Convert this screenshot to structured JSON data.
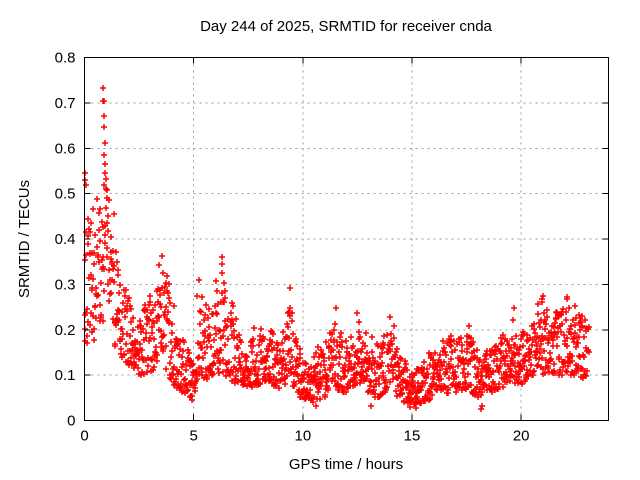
{
  "chart_data": {
    "type": "scatter",
    "title": "Day 244 of 2025, SRMTID for receiver cnda",
    "xlabel": "GPS time / hours",
    "ylabel": "SRMTID / TECUs",
    "xlim": [
      0,
      24
    ],
    "ylim": [
      0,
      0.8
    ],
    "xticks": [
      0,
      5,
      10,
      15,
      20
    ],
    "xtick_labels": [
      "0",
      "5",
      "10",
      "15",
      "20"
    ],
    "yticks": [
      0,
      0.1,
      0.2,
      0.3,
      0.4,
      0.5,
      0.6,
      0.7,
      0.8
    ],
    "ytick_labels": [
      "0",
      "0.1",
      "0.2",
      "0.3",
      "0.4",
      "0.5",
      "0.6",
      "0.7",
      "0.8"
    ],
    "grid": true,
    "legend": "none",
    "marker": {
      "glyph": "plus",
      "color": "#ff0000",
      "size": 7
    },
    "colors": {
      "marker": "#ff0000",
      "grid": "#9c9c9c",
      "axis": "#000000",
      "background": "#ffffff"
    },
    "series_name": "SRMTID",
    "x_start": 0.0,
    "x_end": 23.1,
    "n_points": 1650,
    "seed": 2440244,
    "spike_prob": 0.035,
    "envelope": [
      [
        0.0,
        0.17,
        0.5
      ],
      [
        0.3,
        0.17,
        0.45
      ],
      [
        0.6,
        0.18,
        0.5
      ],
      [
        0.8,
        0.2,
        0.55
      ],
      [
        1.0,
        0.28,
        0.52
      ],
      [
        1.2,
        0.2,
        0.46
      ],
      [
        1.5,
        0.15,
        0.36
      ],
      [
        1.8,
        0.13,
        0.31
      ],
      [
        2.1,
        0.12,
        0.26
      ],
      [
        2.5,
        0.1,
        0.21
      ],
      [
        2.9,
        0.1,
        0.26
      ],
      [
        3.3,
        0.12,
        0.31
      ],
      [
        3.6,
        0.12,
        0.34
      ],
      [
        3.9,
        0.09,
        0.28
      ],
      [
        4.2,
        0.07,
        0.19
      ],
      [
        4.6,
        0.06,
        0.16
      ],
      [
        5.0,
        0.05,
        0.14
      ],
      [
        5.2,
        0.1,
        0.3
      ],
      [
        5.6,
        0.09,
        0.25
      ],
      [
        6.0,
        0.1,
        0.28
      ],
      [
        6.3,
        0.11,
        0.33
      ],
      [
        6.6,
        0.09,
        0.27
      ],
      [
        7.0,
        0.08,
        0.19
      ],
      [
        7.5,
        0.07,
        0.17
      ],
      [
        8.0,
        0.08,
        0.2
      ],
      [
        8.5,
        0.08,
        0.18
      ],
      [
        9.0,
        0.07,
        0.17
      ],
      [
        9.4,
        0.09,
        0.28
      ],
      [
        9.7,
        0.06,
        0.17
      ],
      [
        10.0,
        0.04,
        0.13
      ],
      [
        10.5,
        0.04,
        0.14
      ],
      [
        11.0,
        0.05,
        0.16
      ],
      [
        11.5,
        0.07,
        0.23
      ],
      [
        12.0,
        0.06,
        0.17
      ],
      [
        12.5,
        0.08,
        0.22
      ],
      [
        13.0,
        0.05,
        0.16
      ],
      [
        13.5,
        0.05,
        0.17
      ],
      [
        14.0,
        0.07,
        0.21
      ],
      [
        14.5,
        0.04,
        0.14
      ],
      [
        15.0,
        0.035,
        0.11
      ],
      [
        15.5,
        0.04,
        0.13
      ],
      [
        16.0,
        0.05,
        0.15
      ],
      [
        16.5,
        0.06,
        0.18
      ],
      [
        17.0,
        0.06,
        0.18
      ],
      [
        17.5,
        0.07,
        0.2
      ],
      [
        18.0,
        0.05,
        0.17
      ],
      [
        18.5,
        0.06,
        0.15
      ],
      [
        19.0,
        0.07,
        0.17
      ],
      [
        19.5,
        0.08,
        0.18
      ],
      [
        20.0,
        0.08,
        0.19
      ],
      [
        20.5,
        0.1,
        0.21
      ],
      [
        21.0,
        0.1,
        0.26
      ],
      [
        21.5,
        0.1,
        0.22
      ],
      [
        22.0,
        0.1,
        0.25
      ],
      [
        22.5,
        0.1,
        0.24
      ],
      [
        23.1,
        0.09,
        0.22
      ]
    ],
    "outliers": [
      [
        0.02,
        0.545
      ],
      [
        0.03,
        0.53
      ],
      [
        0.05,
        0.52
      ],
      [
        0.85,
        0.732
      ],
      [
        0.86,
        0.705
      ],
      [
        0.88,
        0.705
      ],
      [
        0.88,
        0.672
      ],
      [
        0.9,
        0.646
      ],
      [
        0.92,
        0.612
      ],
      [
        0.88,
        0.585
      ],
      [
        0.93,
        0.566
      ],
      [
        0.95,
        0.546
      ],
      [
        1.02,
        0.508
      ],
      [
        1.05,
        0.49
      ],
      [
        3.55,
        0.362
      ],
      [
        5.25,
        0.31
      ],
      [
        6.3,
        0.344
      ],
      [
        9.42,
        0.292
      ],
      [
        11.5,
        0.248
      ],
      [
        12.5,
        0.238
      ],
      [
        14.0,
        0.228
      ],
      [
        17.6,
        0.208
      ],
      [
        19.62,
        0.222
      ],
      [
        19.68,
        0.247
      ],
      [
        20.95,
        0.262
      ],
      [
        21.0,
        0.275
      ],
      [
        22.1,
        0.272
      ],
      [
        22.45,
        0.252
      ],
      [
        4.85,
        0.052
      ],
      [
        4.92,
        0.046
      ],
      [
        10.6,
        0.031
      ],
      [
        13.1,
        0.033
      ],
      [
        14.9,
        0.029
      ],
      [
        15.2,
        0.027
      ],
      [
        18.15,
        0.026
      ],
      [
        18.22,
        0.032
      ]
    ]
  }
}
